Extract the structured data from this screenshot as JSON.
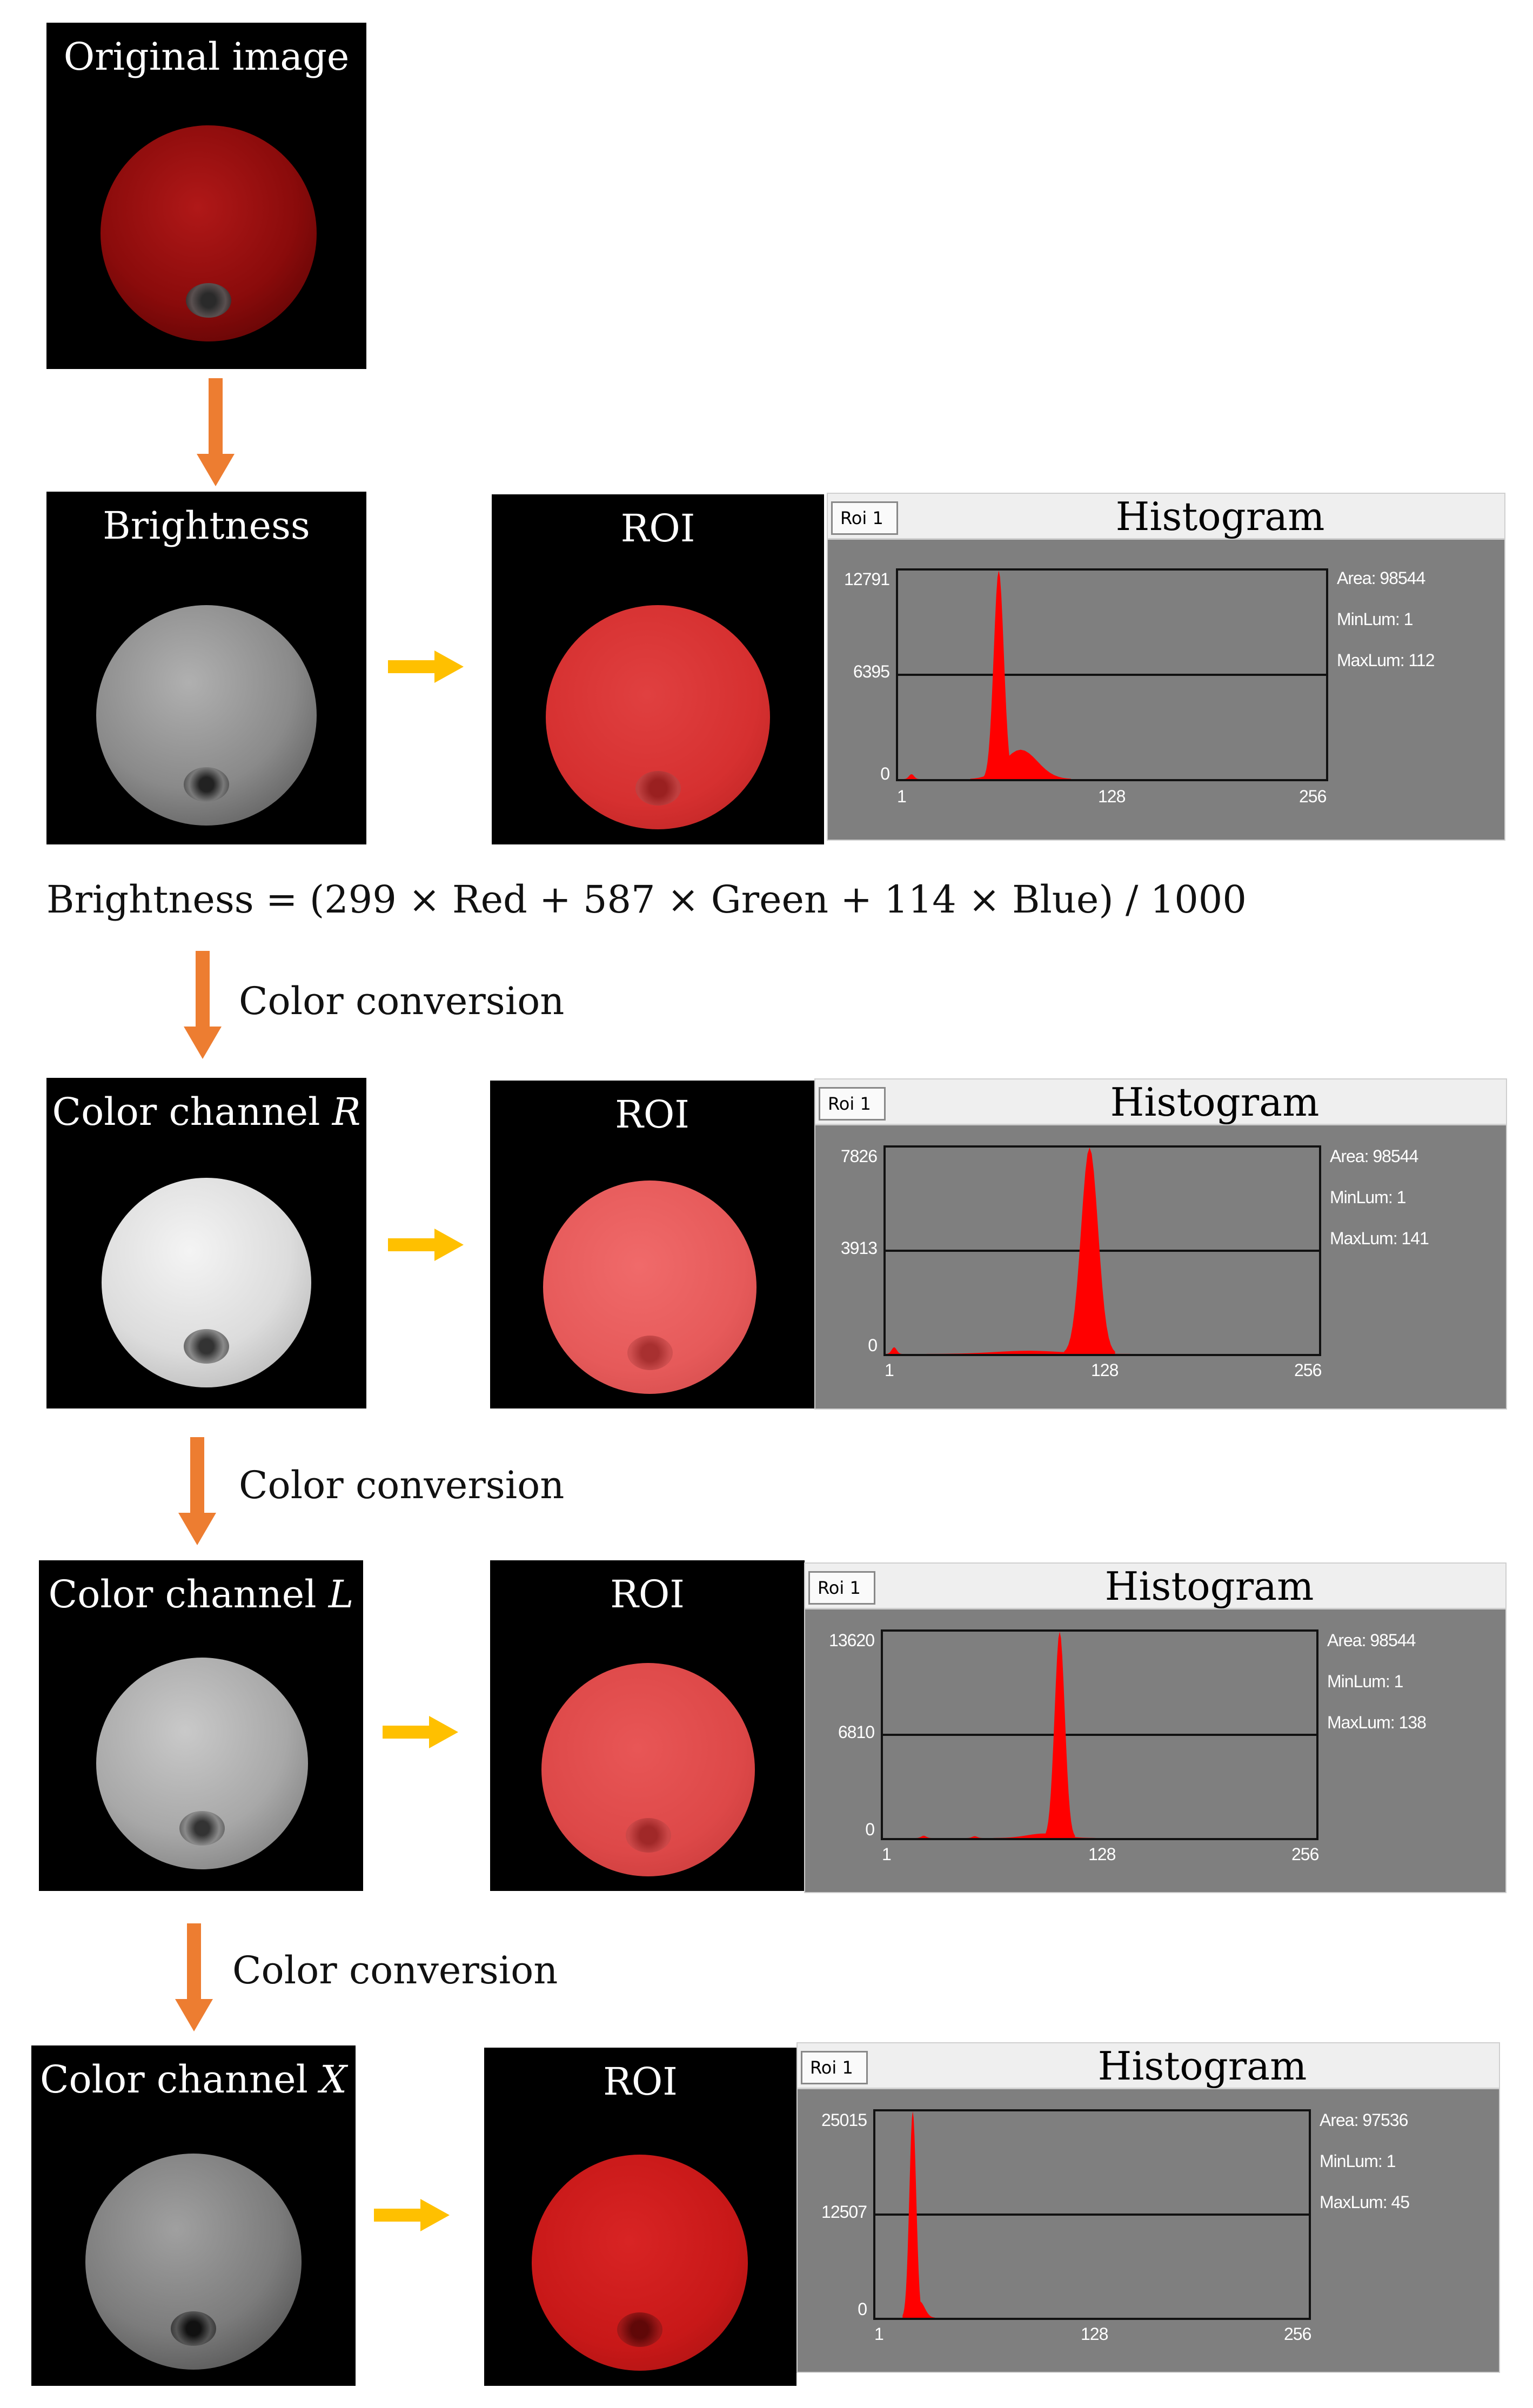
{
  "original": {
    "title": "Original image"
  },
  "formula": "Brightness = (299 × Red + 587 × Green + 114 × Blue) / 1000",
  "conversion_label": "Color conversion",
  "colors": {
    "arrow_down": "#ed7d31",
    "arrow_right": "#ffc000",
    "hist_bg": "#7f7f7f",
    "hist_fill": "#ff0000"
  },
  "rows": [
    {
      "channel_label": "Brightness",
      "channel_italic": "",
      "roi_label": "ROI",
      "histogram": {
        "tab": "Roi 1",
        "title": "Histogram",
        "ytick_top": "12791",
        "ytick_mid": "6395",
        "ytick_bottom": "0",
        "xtick_1": "1",
        "xtick_128": "128",
        "xtick_256": "256",
        "area": "Area: 98544",
        "minlum": "MinLum: 1",
        "maxlum": "MaxLum: 112"
      }
    },
    {
      "channel_label": "Color channel ",
      "channel_italic": "R",
      "roi_label": "ROI",
      "histogram": {
        "tab": "Roi 1",
        "title": "Histogram",
        "ytick_top": "7826",
        "ytick_mid": "3913",
        "ytick_bottom": "0",
        "xtick_1": "1",
        "xtick_128": "128",
        "xtick_256": "256",
        "area": "Area: 98544",
        "minlum": "MinLum: 1",
        "maxlum": "MaxLum: 141"
      }
    },
    {
      "channel_label": "Color channel ",
      "channel_italic": "L",
      "roi_label": "ROI",
      "histogram": {
        "tab": "Roi 1",
        "title": "Histogram",
        "ytick_top": "13620",
        "ytick_mid": "6810",
        "ytick_bottom": "0",
        "xtick_1": "1",
        "xtick_128": "128",
        "xtick_256": "256",
        "area": "Area: 98544",
        "minlum": "MinLum: 1",
        "maxlum": "MaxLum: 138"
      }
    },
    {
      "channel_label": "Color channel ",
      "channel_italic": "X",
      "roi_label": "ROI",
      "histogram": {
        "tab": "Roi 1",
        "title": "Histogram",
        "ytick_top": "25015",
        "ytick_mid": "12507",
        "ytick_bottom": "0",
        "xtick_1": "1",
        "xtick_128": "128",
        "xtick_256": "256",
        "area": "Area: 97536",
        "minlum": "MinLum: 1",
        "maxlum": "MaxLum: 45"
      }
    }
  ],
  "chart_data": [
    {
      "type": "area",
      "xlim": [
        1,
        256
      ],
      "ylim": [
        0,
        12791
      ],
      "peaks": [
        {
          "x": 9,
          "y": 300
        },
        {
          "x": 61,
          "y": 12791,
          "width": 3
        },
        {
          "x": 74,
          "y": 1800,
          "width": 10
        }
      ]
    },
    {
      "type": "area",
      "xlim": [
        1,
        256
      ],
      "ylim": [
        0,
        7826
      ],
      "peaks": [
        {
          "x": 6,
          "y": 250
        },
        {
          "x": 85,
          "y": 120,
          "width": 20
        },
        {
          "x": 121,
          "y": 7826,
          "width": 5
        }
      ]
    },
    {
      "type": "area",
      "xlim": [
        1,
        256
      ],
      "ylim": [
        0,
        13620
      ],
      "peaks": [
        {
          "x": 25,
          "y": 150
        },
        {
          "x": 55,
          "y": 120
        },
        {
          "x": 96,
          "y": 300,
          "width": 10
        },
        {
          "x": 105,
          "y": 13620,
          "width": 3
        }
      ]
    },
    {
      "type": "area",
      "xlim": [
        1,
        256
      ],
      "ylim": [
        0,
        25015
      ],
      "peaks": [
        {
          "x": 23,
          "y": 25015,
          "width": 2
        },
        {
          "x": 27,
          "y": 2000,
          "width": 3
        }
      ]
    }
  ]
}
